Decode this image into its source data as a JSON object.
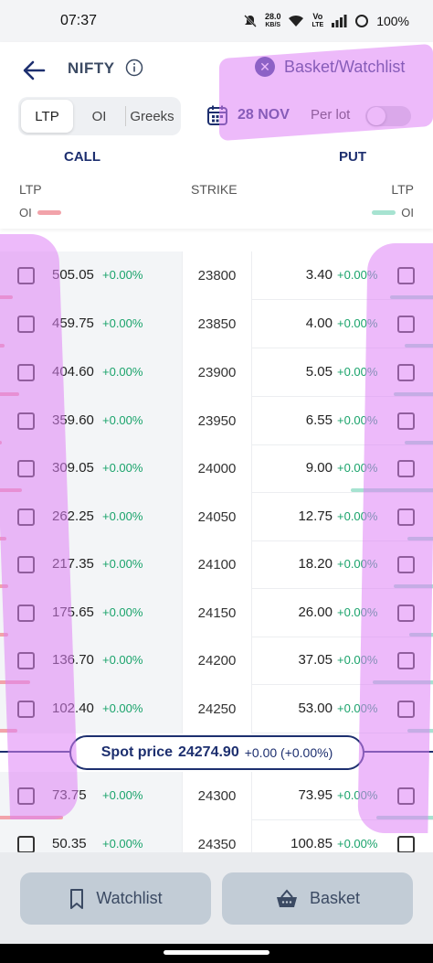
{
  "status": {
    "time": "07:37",
    "net_speed": "28.0",
    "net_unit": "KB/S",
    "volte_top": "Vo",
    "volte_bottom": "LTE",
    "battery": "100%"
  },
  "header": {
    "title": "NIFTY",
    "basket_link": "Basket/Watchlist",
    "tabs": [
      "LTP",
      "OI",
      "Greeks"
    ],
    "active_tab": "LTP",
    "expiry": "28 NOV",
    "per_lot_label": "Per lot",
    "per_lot_on": false,
    "call_label": "CALL",
    "put_label": "PUT",
    "col_ltp": "LTP",
    "col_strike": "STRIKE",
    "col_oi": "OI"
  },
  "colors": {
    "brand": "#1d2f6f",
    "positive": "#1aa36b",
    "call_oi": "#f2a3aa",
    "put_oi": "#a7e3d1",
    "highlight": "#de82f5"
  },
  "rows": [
    {
      "call_ltp": "505.05",
      "call_chg": "+0.00%",
      "strike": "23800",
      "put_ltp": "3.40",
      "put_chg": "+0.00%",
      "call_oi": 0.06,
      "put_oi": 0.2
    },
    {
      "call_ltp": "459.75",
      "call_chg": "+0.00%",
      "strike": "23850",
      "put_ltp": "4.00",
      "put_chg": "+0.00%",
      "call_oi": 0.02,
      "put_oi": 0.13
    },
    {
      "call_ltp": "404.60",
      "call_chg": "+0.00%",
      "strike": "23900",
      "put_ltp": "5.05",
      "put_chg": "+0.00%",
      "call_oi": 0.09,
      "put_oi": 0.18
    },
    {
      "call_ltp": "359.60",
      "call_chg": "+0.00%",
      "strike": "23950",
      "put_ltp": "6.55",
      "put_chg": "+0.00%",
      "call_oi": 0.01,
      "put_oi": 0.13
    },
    {
      "call_ltp": "309.05",
      "call_chg": "+0.00%",
      "strike": "24000",
      "put_ltp": "9.00",
      "put_chg": "+0.00%",
      "call_oi": 0.1,
      "put_oi": 0.38
    },
    {
      "call_ltp": "262.25",
      "call_chg": "+0.00%",
      "strike": "24050",
      "put_ltp": "12.75",
      "put_chg": "+0.00%",
      "call_oi": 0.03,
      "put_oi": 0.12
    },
    {
      "call_ltp": "217.35",
      "call_chg": "+0.00%",
      "strike": "24100",
      "put_ltp": "18.20",
      "put_chg": "+0.00%",
      "call_oi": 0.04,
      "put_oi": 0.18
    },
    {
      "call_ltp": "175.65",
      "call_chg": "+0.00%",
      "strike": "24150",
      "put_ltp": "26.00",
      "put_chg": "+0.00%",
      "call_oi": 0.04,
      "put_oi": 0.11
    },
    {
      "call_ltp": "136.70",
      "call_chg": "+0.00%",
      "strike": "24200",
      "put_ltp": "37.05",
      "put_chg": "+0.00%",
      "call_oi": 0.14,
      "put_oi": 0.28
    },
    {
      "call_ltp": "102.40",
      "call_chg": "+0.00%",
      "strike": "24250",
      "put_ltp": "53.00",
      "put_chg": "+0.00%",
      "call_oi": 0.08,
      "put_oi": 0.12
    },
    {
      "call_ltp": "73.75",
      "call_chg": "+0.00%",
      "strike": "24300",
      "put_ltp": "73.95",
      "put_chg": "+0.00%",
      "call_oi": 0.29,
      "put_oi": 0.26
    },
    {
      "call_ltp": "50.35",
      "call_chg": "+0.00%",
      "strike": "24350",
      "put_ltp": "100.85",
      "put_chg": "+0.00%",
      "call_oi": 0.0,
      "put_oi": 0.0
    }
  ],
  "spot": {
    "label": "Spot price",
    "price": "24274.90",
    "change": "+0.00 (+0.00%)"
  },
  "footer": {
    "watchlist": "Watchlist",
    "basket": "Basket"
  }
}
